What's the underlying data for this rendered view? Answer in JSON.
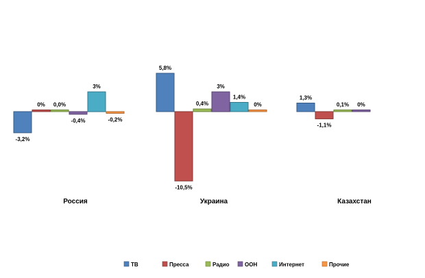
{
  "chart_data": {
    "type": "bar",
    "title": "",
    "xlabel": "",
    "ylabel": "",
    "categories": [
      "Россия",
      "Украина",
      "Казахстан"
    ],
    "series": [
      {
        "name": "ТВ",
        "color": "#4F81BD",
        "values": [
          -3.2,
          5.8,
          1.3
        ],
        "labels": [
          "-3,2%",
          "5,8%",
          "1,3%"
        ]
      },
      {
        "name": "Пресса",
        "color": "#C0504D",
        "values": [
          0,
          -10.5,
          -1.1
        ],
        "labels": [
          "0%",
          "-10,5%",
          "-1,1%"
        ]
      },
      {
        "name": "Радио",
        "color": "#9BBB59",
        "values": [
          0.0,
          0.4,
          0.1
        ],
        "labels": [
          "0,0%",
          "0,4%",
          "0,1%"
        ]
      },
      {
        "name": "ООН",
        "color": "#8064A2",
        "values": [
          -0.4,
          3,
          0
        ],
        "labels": [
          "-0,4%",
          "3%",
          "0%"
        ]
      },
      {
        "name": "Интернет",
        "color": "#4BACC6",
        "values": [
          3,
          1.4,
          null
        ],
        "labels": [
          "3%",
          "1,4%",
          null
        ]
      },
      {
        "name": "Прочие",
        "color": "#F79646",
        "values": [
          -0.2,
          0,
          null
        ],
        "labels": [
          "-0,2%",
          "0%",
          null
        ]
      }
    ],
    "grid": false,
    "legend_position": "bottom"
  }
}
